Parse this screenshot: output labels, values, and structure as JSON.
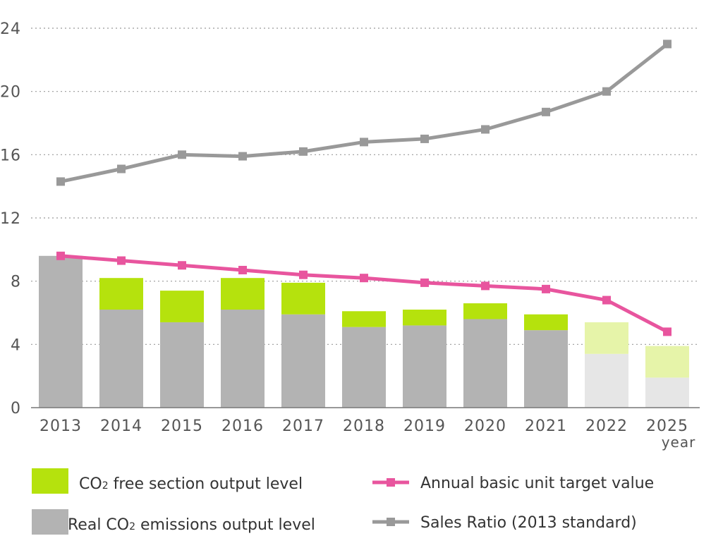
{
  "chart_data": {
    "type": "bar",
    "categories": [
      "2013",
      "2014",
      "2015",
      "2016",
      "2017",
      "2018",
      "2019",
      "2020",
      "2021",
      "2022",
      "2025"
    ],
    "xlabel": "year",
    "ylabel": "",
    "ylim": [
      0,
      24
    ],
    "yticks": [
      "0",
      "4",
      "8",
      "12",
      "16",
      "20",
      "24"
    ],
    "grid": "horizontal dotted",
    "legend_position": "bottom",
    "projected_categories": [
      "2022",
      "2025"
    ],
    "series": [
      {
        "name": "Real CO2 emissions output level",
        "kind": "bar-stacked-base",
        "color": "#b3b3b3",
        "projected_color": "#e6e6e6",
        "values": [
          9.6,
          6.2,
          5.4,
          6.2,
          5.9,
          5.1,
          5.2,
          5.6,
          4.9,
          3.4,
          1.9
        ]
      },
      {
        "name": "CO2 free section output level",
        "kind": "bar-stacked-top",
        "color": "#b5e20d",
        "projected_color": "#e6f4a9",
        "values": [
          0,
          2.0,
          2.0,
          2.0,
          2.0,
          1.0,
          1.0,
          1.0,
          1.0,
          2.0,
          2.0
        ]
      },
      {
        "name": "Annual basic unit target value",
        "kind": "line",
        "color": "#e8559e",
        "values": [
          9.6,
          9.3,
          9.0,
          8.7,
          8.4,
          8.2,
          7.9,
          7.7,
          7.5,
          6.8,
          4.8
        ]
      },
      {
        "name": "Sales Ratio (2013 standard)",
        "kind": "line",
        "color": "#999999",
        "values": [
          14.3,
          15.1,
          16.0,
          15.9,
          16.2,
          16.8,
          17.0,
          17.6,
          18.7,
          20.0,
          23.0
        ]
      }
    ],
    "legend": {
      "co2_free": {
        "pre": "CO",
        "sub": "2",
        "post": " free section output level"
      },
      "real_co2": {
        "pre": "Real CO",
        "sub": "2",
        "post": " emissions output level"
      },
      "target": {
        "text": "Annual basic unit target value"
      },
      "sales": {
        "text": "Sales Ratio (2013 standard)"
      }
    }
  }
}
